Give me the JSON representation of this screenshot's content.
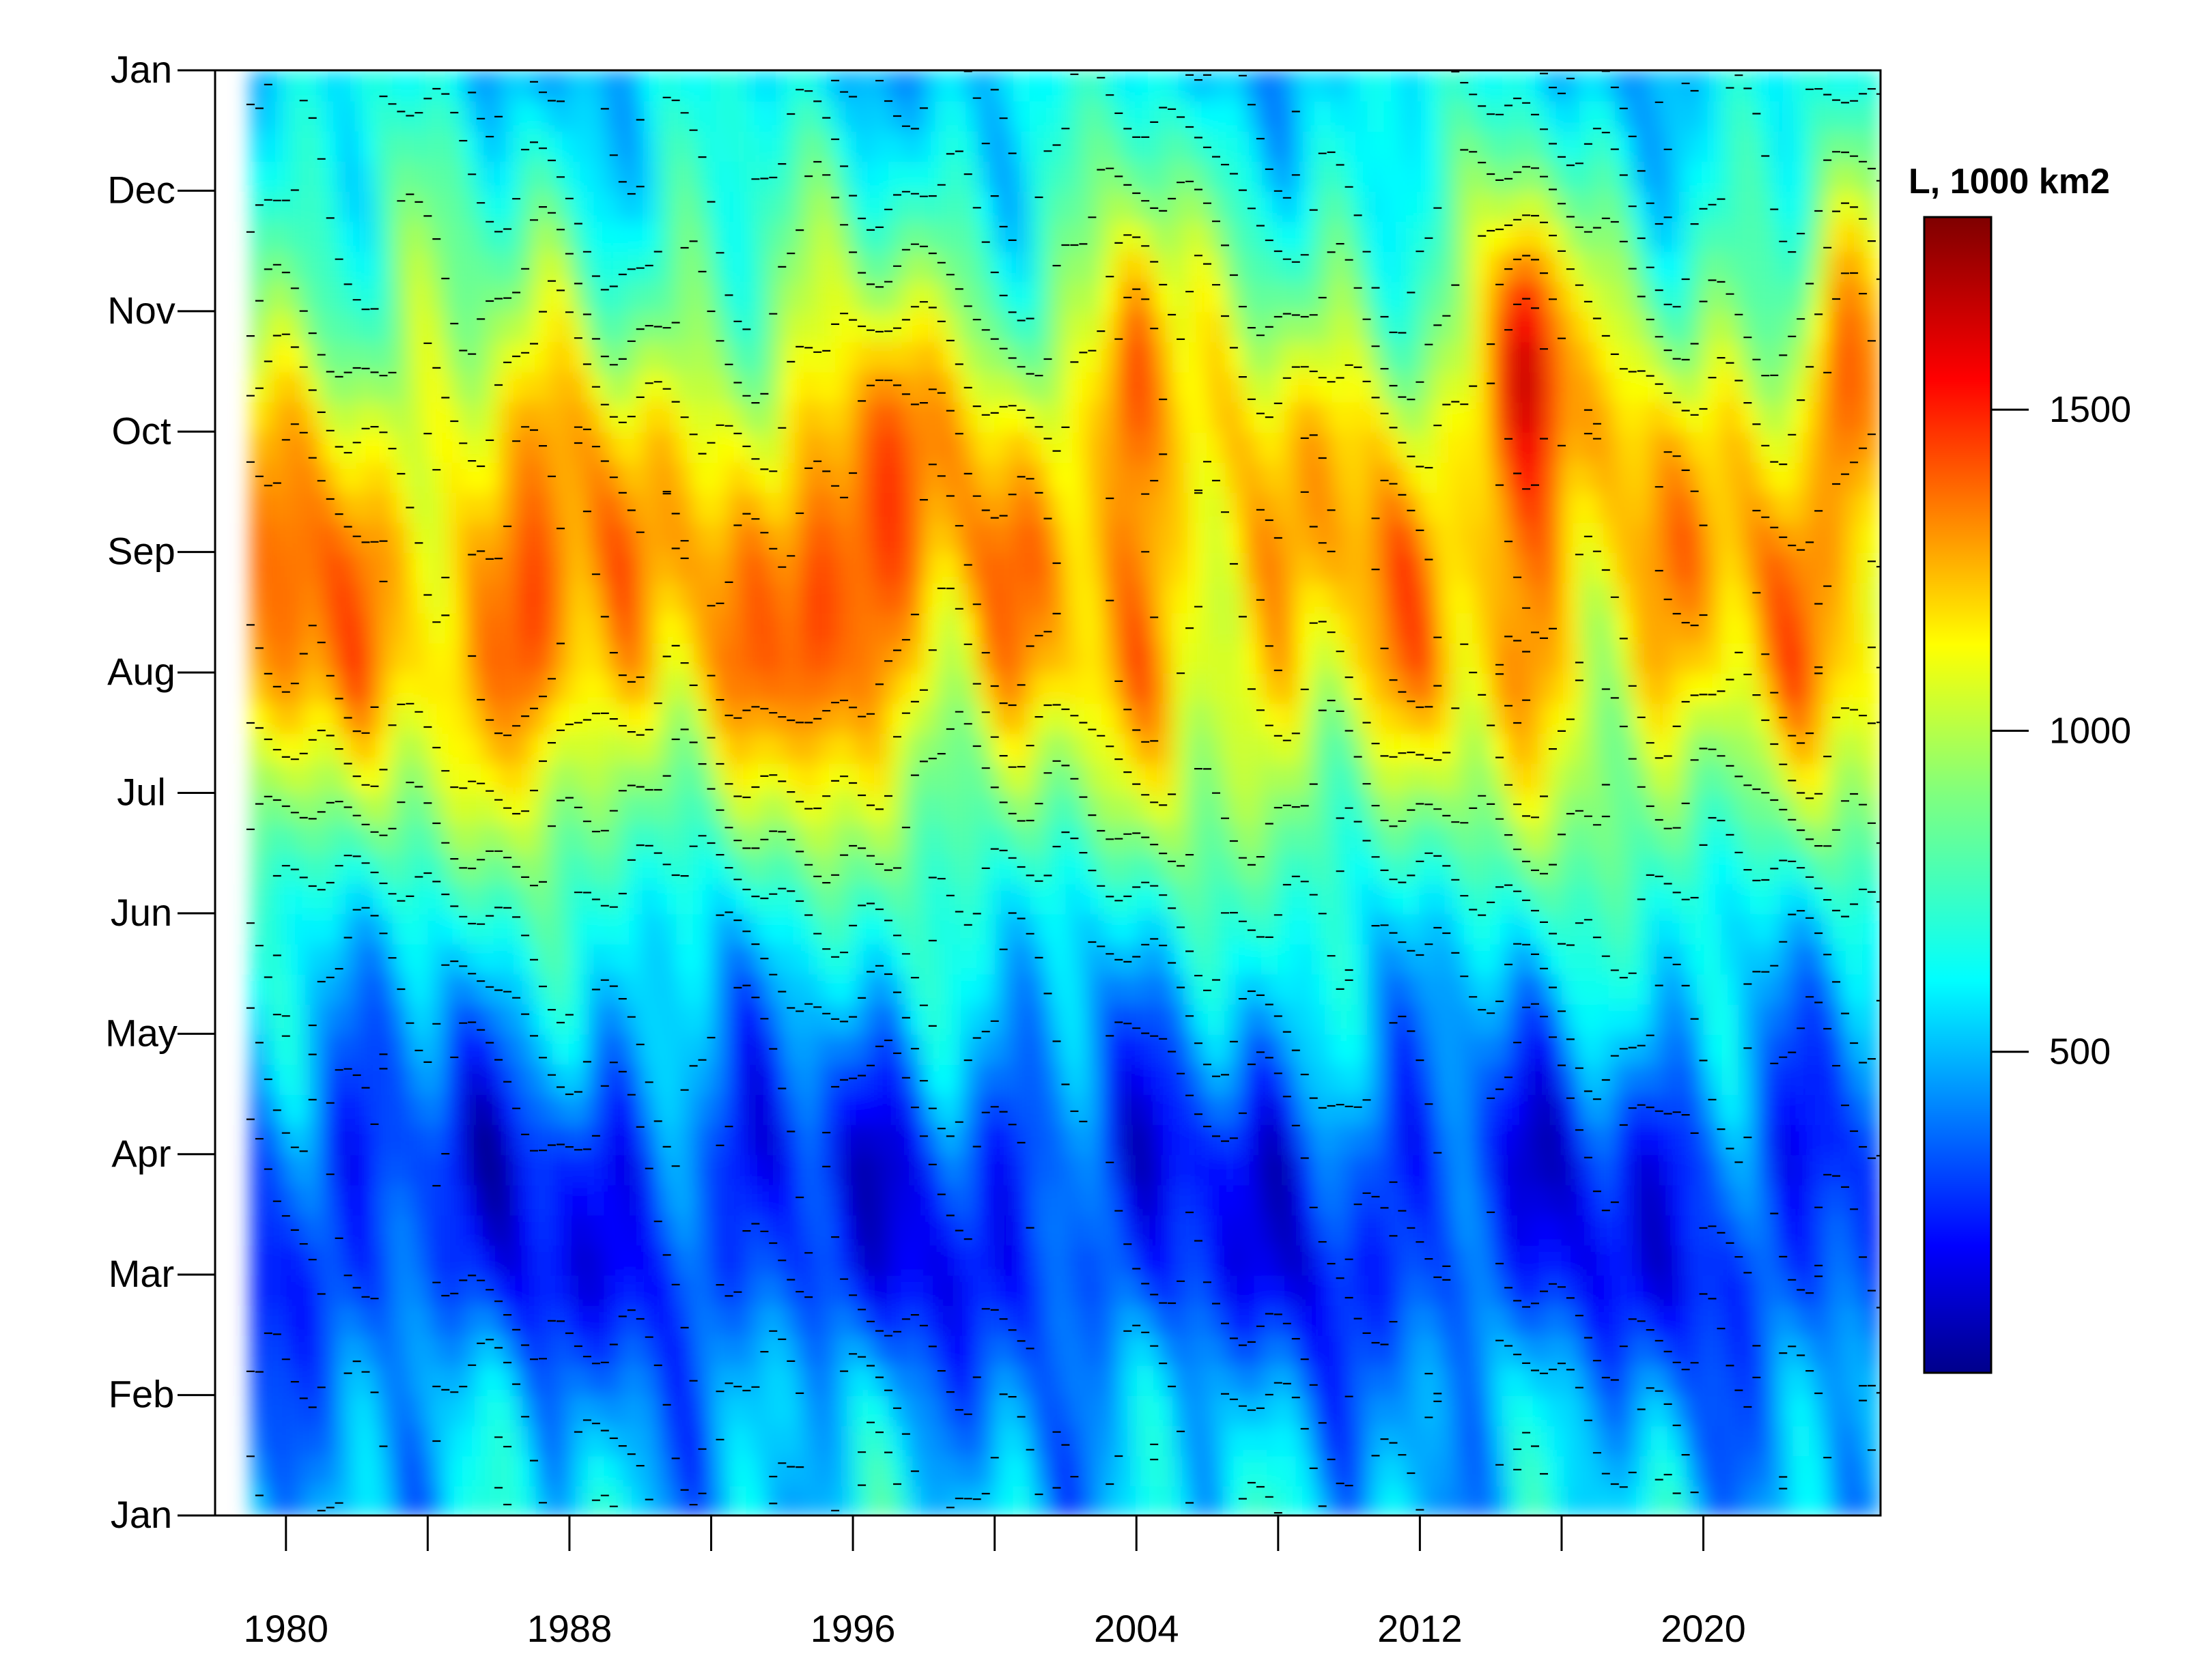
{
  "chart_data": {
    "type": "heatmap",
    "title": "",
    "xlabel": "",
    "ylabel": "",
    "x_tick_labels": [
      "1980",
      "1988",
      "1996",
      "2004",
      "2012",
      "2020"
    ],
    "x_tick_values": [
      1980,
      1984,
      1988,
      1992,
      1996,
      2000,
      2004,
      2008,
      2012,
      2016,
      2020
    ],
    "xlim": [
      1978,
      2025
    ],
    "y_tick_labels": [
      "Jan",
      "Feb",
      "Mar",
      "Apr",
      "May",
      "Jun",
      "Jul",
      "Aug",
      "Sep",
      "Oct",
      "Nov",
      "Dec",
      "Jan"
    ],
    "colorbar": {
      "title": "L, 1000 km2",
      "tick_labels": [
        "500",
        "1000",
        "1500"
      ],
      "tick_values": [
        500,
        1000,
        1500
      ],
      "range": [
        0,
        1800
      ],
      "colormap": "jet"
    },
    "contour_lines": true,
    "data_years_range": [
      1979,
      2024
    ],
    "seasonal_profile": {
      "months": [
        "Jan",
        "Feb",
        "Mar",
        "Apr",
        "May",
        "Jun",
        "Jul",
        "Aug",
        "Sep",
        "Oct",
        "Nov",
        "Dec"
      ],
      "values": [
        550,
        450,
        250,
        250,
        450,
        650,
        950,
        1200,
        1250,
        1150,
        900,
        700
      ]
    },
    "notable_peaks": [
      {
        "year": 1980,
        "month": "Aug",
        "value": 1400
      },
      {
        "year": 1987,
        "month": "Aug",
        "value": 1500
      },
      {
        "year": 1995,
        "month": "Aug",
        "value": 1500
      },
      {
        "year": 1997,
        "month": "Sep",
        "value": 1500
      },
      {
        "year": 2004,
        "month": "Oct",
        "value": 1500
      },
      {
        "year": 2015,
        "month": "Oct",
        "value": 1750
      },
      {
        "year": 2024,
        "month": "Oct",
        "value": 1450
      }
    ]
  }
}
